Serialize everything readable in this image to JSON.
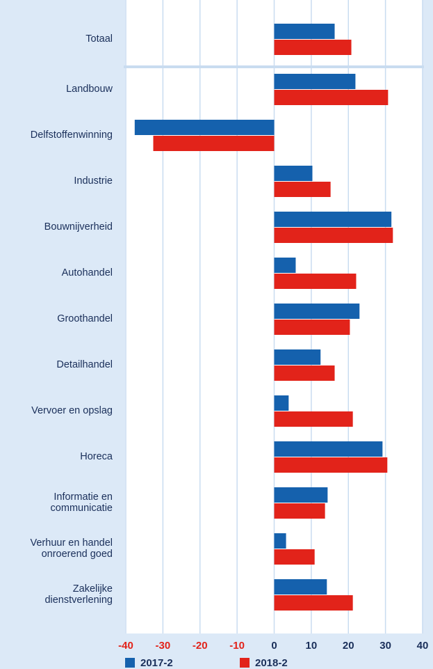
{
  "chart_data": {
    "type": "hbar",
    "categories": [
      "Totaal",
      "Landbouw",
      "Delfstoffenwinning",
      "Industrie",
      "Bouwnijverheid",
      "Autohandel",
      "Groothandel",
      "Detailhandel",
      "Vervoer en opslag",
      "Horeca",
      "Informatie en\ncommunicatie",
      "Verhuur en handel\nonroerend goed",
      "Zakelijke\ndienstverlening"
    ],
    "series": [
      {
        "name": "2017-2",
        "color": "#1561ad",
        "values": [
          16.3,
          21.9,
          -37.6,
          10.3,
          31.6,
          5.8,
          23.0,
          12.5,
          3.9,
          29.2,
          14.4,
          3.2,
          14.2
        ]
      },
      {
        "name": "2018-2",
        "color": "#e2231a",
        "values": [
          20.8,
          30.7,
          -32.6,
          15.2,
          32.0,
          22.1,
          20.4,
          16.3,
          21.2,
          30.5,
          13.7,
          10.9,
          21.2
        ]
      }
    ],
    "xlim": [
      -40,
      40
    ],
    "xticks": [
      -40,
      -30,
      -20,
      -10,
      0,
      10,
      20,
      30,
      40
    ],
    "grid": true,
    "tick_color": "#1a2f5a",
    "negative_tick_color": "#e2231a",
    "legend": "bottom"
  }
}
